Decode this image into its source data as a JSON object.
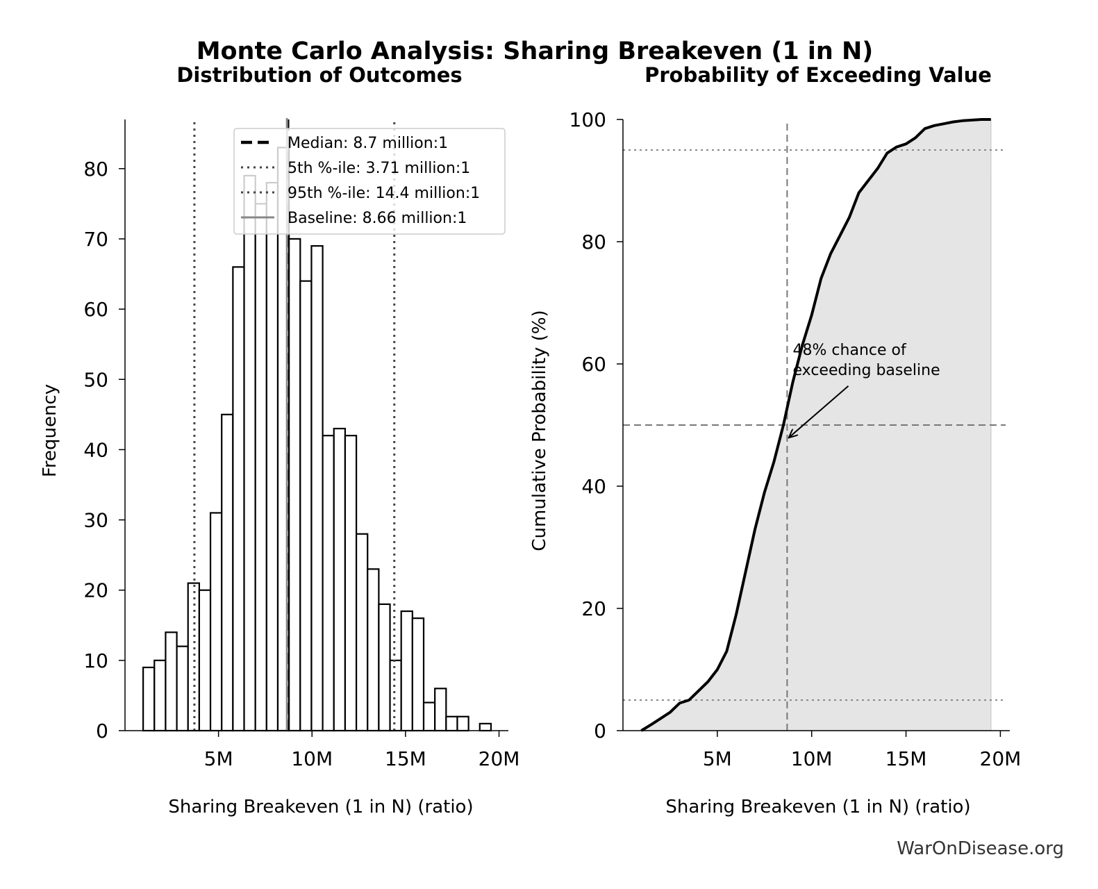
{
  "figure": {
    "title": "Monte Carlo Analysis: Sharing Breakeven (1 in N)",
    "watermark": "WarOnDisease.org"
  },
  "chart_data": [
    {
      "type": "bar",
      "subtype": "histogram",
      "title": "Distribution of Outcomes",
      "xlabel": "Sharing Breakeven (1 in N) (ratio)",
      "ylabel": "Frequency",
      "xlim": [
        0,
        20.5
      ],
      "ylim": [
        0,
        87
      ],
      "xticks": [
        {
          "value": 5,
          "label": "5M"
        },
        {
          "value": 10,
          "label": "10M"
        },
        {
          "value": 15,
          "label": "15M"
        },
        {
          "value": 20,
          "label": "20M"
        }
      ],
      "yticks": [
        {
          "value": 0,
          "label": "0"
        },
        {
          "value": 10,
          "label": "10"
        },
        {
          "value": 20,
          "label": "20"
        },
        {
          "value": 30,
          "label": "30"
        },
        {
          "value": 40,
          "label": "40"
        },
        {
          "value": 50,
          "label": "50"
        },
        {
          "value": 60,
          "label": "60"
        },
        {
          "value": 70,
          "label": "70"
        },
        {
          "value": 80,
          "label": "80"
        }
      ],
      "bin_start": 0.97,
      "bin_width": 0.6,
      "counts": [
        9,
        10,
        14,
        12,
        21,
        20,
        31,
        45,
        66,
        79,
        75,
        78,
        83,
        70,
        64,
        69,
        42,
        43,
        42,
        28,
        23,
        18,
        10,
        17,
        16,
        4,
        6,
        2,
        2,
        0,
        1
      ],
      "bar_fill": "#ffffff",
      "bar_edge": "#000000",
      "lines": [
        {
          "name": "Median: 8.7 million:1",
          "x": 8.7,
          "style": "dashed",
          "color": "#000000"
        },
        {
          "name": "5th %-ile: 3.71 million:1",
          "x": 3.71,
          "style": "dotted",
          "color": "#444444"
        },
        {
          "name": "95th %-ile: 14.4 million:1",
          "x": 14.4,
          "style": "dotted",
          "color": "#444444"
        },
        {
          "name": "Baseline: 8.66 million:1",
          "x": 8.66,
          "style": "solid",
          "color": "#888888"
        }
      ],
      "legend_position": "upper-right"
    },
    {
      "type": "line",
      "subtype": "cumulative",
      "title": "Probability of Exceeding Value",
      "xlabel": "Sharing Breakeven (1 in N) (ratio)",
      "ylabel": "Cumulative Probability (%)",
      "xlim": [
        0,
        20.5
      ],
      "ylim": [
        0,
        100
      ],
      "xticks": [
        {
          "value": 5,
          "label": "5M"
        },
        {
          "value": 10,
          "label": "10M"
        },
        {
          "value": 15,
          "label": "15M"
        },
        {
          "value": 20,
          "label": "20M"
        }
      ],
      "yticks": [
        {
          "value": 0,
          "label": "0"
        },
        {
          "value": 20,
          "label": "20"
        },
        {
          "value": 40,
          "label": "40"
        },
        {
          "value": 60,
          "label": "60"
        },
        {
          "value": 80,
          "label": "80"
        },
        {
          "value": 100,
          "label": "100"
        }
      ],
      "x": [
        0.97,
        1.5,
        2.0,
        2.5,
        3.0,
        3.5,
        4.0,
        4.5,
        5.0,
        5.5,
        6.0,
        6.5,
        7.0,
        7.5,
        8.0,
        8.5,
        9.0,
        9.5,
        10.0,
        10.5,
        11.0,
        11.5,
        12.0,
        12.5,
        13.0,
        13.5,
        14.0,
        14.5,
        15.0,
        15.5,
        16.0,
        16.5,
        17.0,
        17.5,
        18.0,
        18.5,
        19.0,
        19.5
      ],
      "y": [
        0,
        1,
        2,
        3,
        4.5,
        5,
        6.5,
        8,
        10,
        13,
        19,
        26,
        33,
        39,
        44,
        50,
        57,
        63,
        68,
        74,
        78,
        81,
        84,
        88,
        90,
        92,
        94.5,
        95.5,
        96,
        97,
        98.5,
        99,
        99.3,
        99.6,
        99.8,
        99.9,
        100,
        100
      ],
      "fill_color": "#e5e5e5",
      "line_color": "#000000",
      "vline_x": 8.7,
      "hlines": [
        5,
        50,
        95
      ],
      "annotation": {
        "text_lines": [
          "48% chance of",
          "exceeding baseline"
        ],
        "text_x": 9.0,
        "text_y": 61.5,
        "arrow_to_x": 8.7,
        "arrow_to_y": 48
      }
    }
  ]
}
